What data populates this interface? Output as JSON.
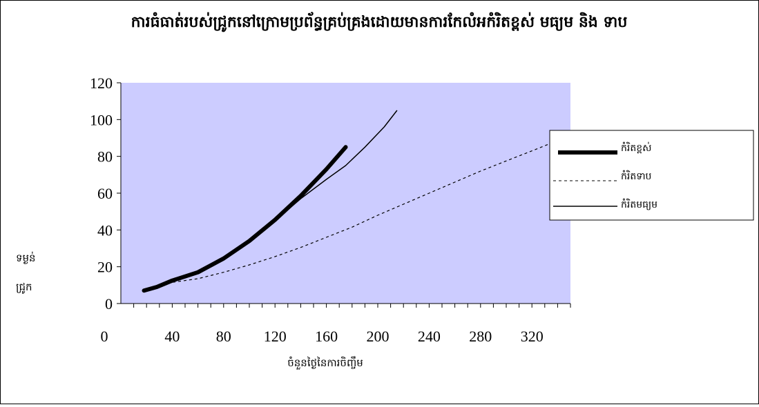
{
  "chart_data": {
    "type": "line",
    "title": "ការធំធាត់របស់ជ្រូកនៅក្រោមប្រព័ន្ធគ្រប់គ្រងដោយមានការកែលំអកំរិតខ្ពស់ មធ្យម និង ទាប",
    "xlabel": "ចំនួនថ្ងៃនៃការចិញ្ចឹម",
    "ylabel_lines": [
      "ទម្ងន់",
      "ជ្រូក"
    ],
    "xlim": [
      0,
      350
    ],
    "ylim": [
      0,
      120
    ],
    "xticks": [
      0,
      40,
      80,
      120,
      160,
      200,
      240,
      280,
      320
    ],
    "yticks": [
      0,
      20,
      40,
      60,
      80,
      100,
      120
    ],
    "plot_background": "#ccccff",
    "legend_position": "right",
    "series": [
      {
        "name": "កំរិតខ្ពស់",
        "style": "thick",
        "color": "#000000",
        "points": [
          [
            18,
            7
          ],
          [
            28,
            9
          ],
          [
            40,
            12.5
          ],
          [
            60,
            17
          ],
          [
            80,
            24.5
          ],
          [
            100,
            34
          ],
          [
            120,
            45.5
          ],
          [
            140,
            58.5
          ],
          [
            160,
            73
          ],
          [
            175,
            85
          ]
        ]
      },
      {
        "name": "កំរិតទាប",
        "style": "dashed",
        "color": "#000000",
        "points": [
          [
            28,
            9
          ],
          [
            40,
            11.5
          ],
          [
            60,
            13.5
          ],
          [
            80,
            17
          ],
          [
            100,
            21
          ],
          [
            120,
            25.5
          ],
          [
            140,
            30.5
          ],
          [
            160,
            36
          ],
          [
            180,
            41.5
          ],
          [
            200,
            48
          ],
          [
            220,
            54
          ],
          [
            240,
            60
          ],
          [
            260,
            66
          ],
          [
            280,
            72
          ],
          [
            300,
            77.5
          ],
          [
            320,
            83
          ],
          [
            338,
            88
          ]
        ]
      },
      {
        "name": "កំរិតមធ្យម",
        "style": "thin",
        "color": "#000000",
        "points": [
          [
            18,
            7
          ],
          [
            28,
            9
          ],
          [
            40,
            12.5
          ],
          [
            60,
            17
          ],
          [
            80,
            24.5
          ],
          [
            100,
            34
          ],
          [
            120,
            45
          ],
          [
            140,
            57
          ],
          [
            160,
            67.5
          ],
          [
            175,
            75
          ],
          [
            190,
            85
          ],
          [
            205,
            96
          ],
          [
            215,
            105
          ]
        ]
      }
    ]
  }
}
